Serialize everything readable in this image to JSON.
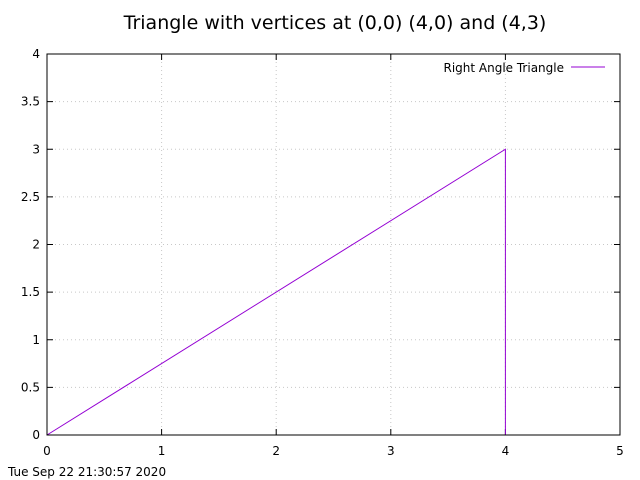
{
  "chart_data": {
    "type": "line",
    "title": "Triangle with vertices at (0,0) (4,0) and (4,3)",
    "xlabel": "",
    "ylabel": "",
    "xlim": [
      0,
      5
    ],
    "ylim": [
      0,
      4
    ],
    "x_ticks": [
      0,
      1,
      2,
      3,
      4,
      5
    ],
    "x_tick_labels": [
      "0",
      "1",
      "2",
      "3",
      "4",
      "5"
    ],
    "y_ticks": [
      0,
      0.5,
      1,
      1.5,
      2,
      2.5,
      3,
      3.5,
      4
    ],
    "y_tick_labels": [
      "0",
      "0.5",
      "1",
      "1.5",
      "2",
      "2.5",
      "3",
      "3.5",
      "4"
    ],
    "grid": true,
    "legend_position": "top-right",
    "series": [
      {
        "name": "Right Angle Triangle",
        "color": "#9400d3",
        "x": [
          0,
          4,
          4,
          0
        ],
        "y": [
          0,
          3,
          0,
          0
        ]
      }
    ]
  },
  "timestamp": "Tue Sep 22 21:30:57 2020"
}
